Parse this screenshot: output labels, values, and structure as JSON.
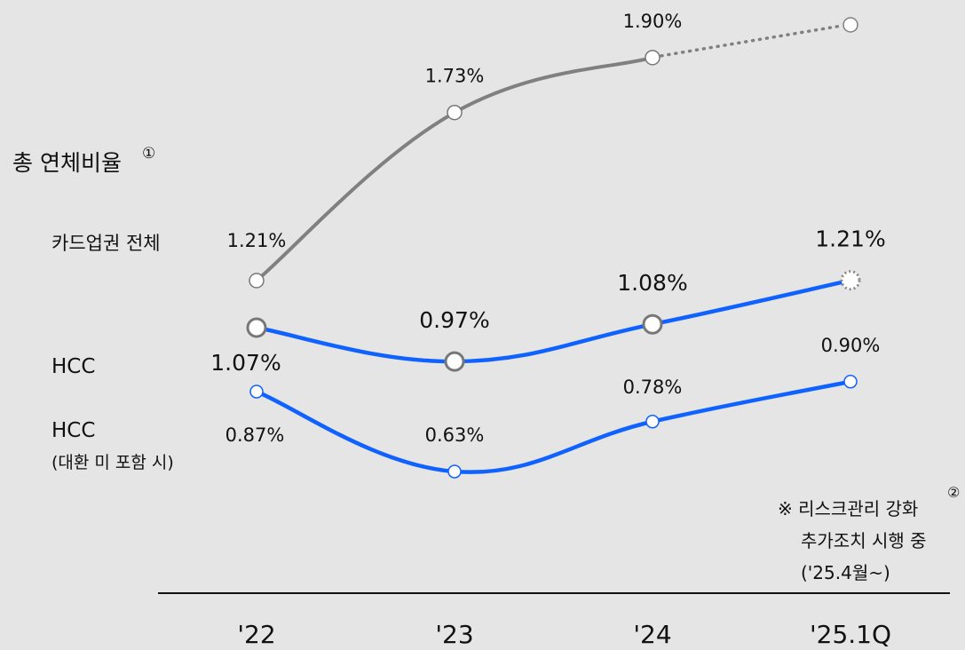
{
  "chart_data": {
    "type": "line",
    "title": "총 연체비율",
    "title_marker": "①",
    "categories": [
      "'22",
      "'23",
      "'24",
      "'25.1Q"
    ],
    "series": [
      {
        "name": "카드업권 전체",
        "color": "#808080",
        "values": [
          1.21,
          1.73,
          1.9,
          null
        ],
        "labels": [
          "1.21%",
          "1.73%",
          "1.90%",
          ""
        ],
        "last_segment_style": "dotted"
      },
      {
        "name": "HCC",
        "color": "#0f62fe",
        "values": [
          1.07,
          0.97,
          1.08,
          1.21
        ],
        "labels": [
          "1.07%",
          "0.97%",
          "1.08%",
          "1.21%"
        ],
        "last_point_style": "dotted"
      },
      {
        "name_lines": [
          "HCC",
          "(대환 미 포함 시)"
        ],
        "color": "#0f62fe",
        "values": [
          0.87,
          0.63,
          0.78,
          0.9
        ],
        "labels": [
          "0.87%",
          "0.63%",
          "0.78%",
          "0.90%"
        ]
      }
    ],
    "note": {
      "lines": [
        "※ 리스크관리 강화",
        "추가조치 시행 중",
        "('25.4월~)"
      ],
      "marker": "②"
    },
    "grid": false,
    "legend": "left"
  }
}
